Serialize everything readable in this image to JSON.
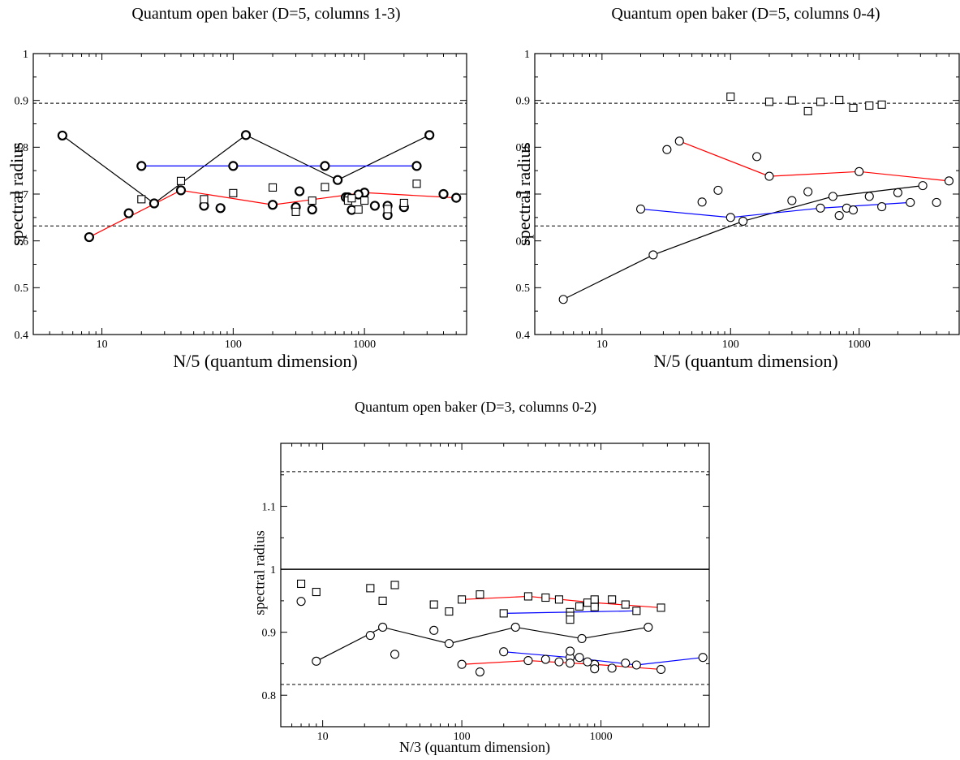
{
  "chart_data": [
    {
      "type": "scatter",
      "title": "Quantum open baker (D=5, columns 1-3)",
      "xlabel": "N/5 (quantum dimension)",
      "ylabel": "spectral radius",
      "xscale": "log",
      "xlim": [
        3,
        6000
      ],
      "ylim": [
        0.4,
        1.0
      ],
      "xticks": [
        10,
        100,
        1000
      ],
      "xtick_labels": [
        "10",
        "100",
        "1000"
      ],
      "yticks": [
        0.4,
        0.5,
        0.6,
        0.7,
        0.8,
        0.9,
        1.0
      ],
      "ytick_labels": [
        "0.4",
        "0.5",
        "0.6",
        "0.7",
        "0.8",
        "0.9",
        "1"
      ],
      "hlines": [
        {
          "y": 0.894,
          "style": "dashed"
        },
        {
          "y": 0.632,
          "style": "dashed"
        }
      ],
      "series": [
        {
          "marker": "circle-bold",
          "line": "#000000",
          "x": [
            5,
            25,
            125,
            625,
            3125
          ],
          "y": [
            0.825,
            0.68,
            0.826,
            0.73,
            0.826
          ]
        },
        {
          "marker": "circle-bold",
          "line": "#0000ff",
          "x": [
            20,
            100,
            500,
            2500
          ],
          "y": [
            0.76,
            0.76,
            0.76,
            0.76
          ]
        },
        {
          "marker": "circle-bold",
          "line": "#ff0000",
          "x": [
            8,
            40,
            200,
            1000,
            5000
          ],
          "y": [
            0.608,
            0.708,
            0.677,
            0.703,
            0.692
          ]
        },
        {
          "marker": "circle-bold",
          "line": "none",
          "x": [
            16,
            60,
            80,
            300,
            320,
            400,
            720,
            750,
            800,
            900,
            1200,
            1500,
            1500,
            2000,
            4000
          ],
          "y": [
            0.659,
            0.675,
            0.67,
            0.672,
            0.706,
            0.667,
            0.693,
            0.693,
            0.666,
            0.699,
            0.675,
            0.675,
            0.655,
            0.672,
            0.7
          ]
        },
        {
          "marker": "square",
          "line": "none",
          "x": [
            20,
            40,
            60,
            100,
            200,
            300,
            400,
            500,
            750,
            800,
            900,
            1000,
            1500,
            2000,
            2500
          ],
          "y": [
            0.689,
            0.728,
            0.689,
            0.702,
            0.714,
            0.662,
            0.686,
            0.715,
            0.686,
            0.691,
            0.667,
            0.686,
            0.668,
            0.681,
            0.722
          ]
        }
      ]
    },
    {
      "type": "scatter",
      "title": "Quantum open baker (D=5, columns 0-4)",
      "xlabel": "N/5 (quantum dimension)",
      "ylabel": "spectral radius",
      "xscale": "log",
      "xlim": [
        3,
        6000
      ],
      "ylim": [
        0.4,
        1.0
      ],
      "xticks": [
        10,
        100,
        1000
      ],
      "xtick_labels": [
        "10",
        "100",
        "1000"
      ],
      "yticks": [
        0.4,
        0.5,
        0.6,
        0.7,
        0.8,
        0.9,
        1.0
      ],
      "ytick_labels": [
        "0.4",
        "0.5",
        "0.6",
        "0.7",
        "0.8",
        "0.9",
        "1"
      ],
      "hlines": [
        {
          "y": 0.894,
          "style": "dashed"
        },
        {
          "y": 0.632,
          "style": "dashed"
        }
      ],
      "series": [
        {
          "marker": "circle",
          "line": "#000000",
          "x": [
            5,
            25,
            125,
            625,
            3125
          ],
          "y": [
            0.475,
            0.57,
            0.642,
            0.695,
            0.718
          ]
        },
        {
          "marker": "circle",
          "line": "#0000ff",
          "x": [
            20,
            100,
            500,
            2500
          ],
          "y": [
            0.668,
            0.65,
            0.67,
            0.682
          ]
        },
        {
          "marker": "circle",
          "line": "#ff0000",
          "x": [
            40,
            200,
            1000,
            5000
          ],
          "y": [
            0.813,
            0.738,
            0.748,
            0.728
          ]
        },
        {
          "marker": "circle",
          "line": "none",
          "x": [
            32,
            60,
            80,
            160,
            300,
            400,
            700,
            800,
            900,
            1200,
            1500,
            2000,
            4000
          ],
          "y": [
            0.795,
            0.683,
            0.708,
            0.78,
            0.686,
            0.705,
            0.654,
            0.67,
            0.666,
            0.695,
            0.673,
            0.703,
            0.682
          ]
        },
        {
          "marker": "square",
          "line": "none",
          "x": [
            100,
            200,
            300,
            400,
            500,
            700,
            900,
            1200,
            1500
          ],
          "y": [
            0.908,
            0.897,
            0.9,
            0.877,
            0.897,
            0.901,
            0.884,
            0.889,
            0.891
          ]
        }
      ]
    },
    {
      "type": "scatter",
      "title": "Quantum open baker (D=3, columns 0-2)",
      "xlabel": "N/3 (quantum dimension)",
      "ylabel": "spectral radius",
      "xscale": "log",
      "xlim": [
        5,
        6000
      ],
      "ylim": [
        0.75,
        1.2
      ],
      "xticks": [
        10,
        100,
        1000
      ],
      "xtick_labels": [
        "10",
        "100",
        "1000"
      ],
      "yticks": [
        0.8,
        0.9,
        1.0,
        1.1
      ],
      "ytick_labels": [
        "0.8",
        "0.9",
        "1",
        "1.1"
      ],
      "hlines": [
        {
          "y": 1.155,
          "style": "dashed"
        },
        {
          "y": 1.0,
          "style": "solid"
        },
        {
          "y": 0.817,
          "style": "dashed"
        }
      ],
      "series": [
        {
          "marker": "circle",
          "line": "#000000",
          "x": [
            9,
            27,
            81,
            243,
            729,
            2187
          ],
          "y": [
            0.854,
            0.908,
            0.882,
            0.908,
            0.89,
            0.908
          ]
        },
        {
          "marker": "circle",
          "line": "#ff0000",
          "x": [
            100,
            300,
            900,
            2700
          ],
          "y": [
            0.849,
            0.855,
            0.849,
            0.841
          ]
        },
        {
          "marker": "circle",
          "line": "#0000ff",
          "x": [
            200,
            600,
            1800,
            5400
          ],
          "y": [
            0.869,
            0.86,
            0.848,
            0.86
          ]
        },
        {
          "marker": "circle",
          "line": "none",
          "x": [
            7,
            22,
            33,
            63,
            135,
            400,
            500,
            600,
            600,
            700,
            800,
            900,
            1200,
            1500
          ],
          "y": [
            0.949,
            0.895,
            0.865,
            0.903,
            0.837,
            0.857,
            0.853,
            0.851,
            0.87,
            0.86,
            0.853,
            0.842,
            0.843,
            0.851
          ]
        },
        {
          "marker": "square",
          "line": "#ff0000",
          "x": [
            100,
            300,
            900,
            2700
          ],
          "y": [
            0.952,
            0.957,
            0.947,
            0.939
          ]
        },
        {
          "marker": "square",
          "line": "#0000ff",
          "x": [
            200,
            600,
            1800
          ],
          "y": [
            0.93,
            0.932,
            0.934
          ]
        },
        {
          "marker": "square",
          "line": "none",
          "x": [
            7,
            9,
            22,
            27,
            33,
            63,
            81,
            135,
            400,
            500,
            600,
            600,
            700,
            800,
            900,
            900,
            1200,
            1500
          ],
          "y": [
            0.977,
            0.964,
            0.97,
            0.95,
            0.975,
            0.944,
            0.933,
            0.96,
            0.955,
            0.952,
            0.926,
            0.92,
            0.941,
            0.947,
            0.952,
            0.94,
            0.952,
            0.944
          ]
        }
      ]
    }
  ]
}
